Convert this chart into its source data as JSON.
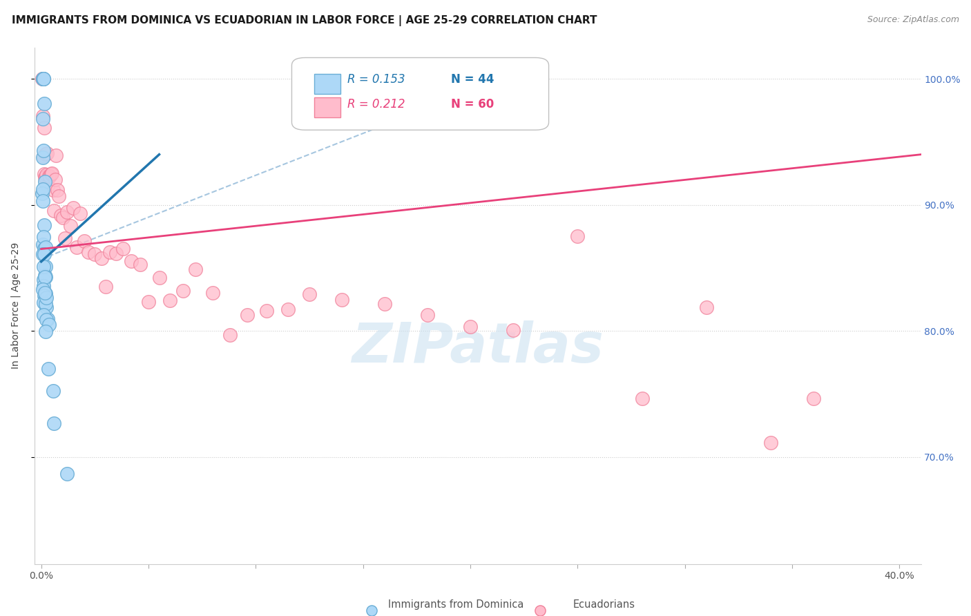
{
  "title": "IMMIGRANTS FROM DOMINICA VS ECUADORIAN IN LABOR FORCE | AGE 25-29 CORRELATION CHART",
  "source": "Source: ZipAtlas.com",
  "ylabel": "In Labor Force | Age 25-29",
  "xlim": [
    -0.003,
    0.41
  ],
  "ylim": [
    0.615,
    1.025
  ],
  "x_ticks": [
    0.0,
    0.05,
    0.1,
    0.15,
    0.2,
    0.25,
    0.3,
    0.35,
    0.4
  ],
  "x_tick_labels": [
    "0.0%",
    "",
    "",
    "",
    "",
    "",
    "",
    "",
    "40.0%"
  ],
  "y_ticks": [
    0.7,
    0.8,
    0.9,
    1.0
  ],
  "y_tick_labels_right": [
    "70.0%",
    "80.0%",
    "90.0%",
    "100.0%"
  ],
  "legend_r1": "R = 0.153",
  "legend_n1": "N = 44",
  "legend_r2": "R = 0.212",
  "legend_n2": "N = 60",
  "dominica_face": "#add8f7",
  "dominica_edge": "#6aaed6",
  "ecuadorian_face": "#ffbccc",
  "ecuadorian_edge": "#f08099",
  "line_dominica_color": "#2176ae",
  "line_ecuadorian_color": "#e8407a",
  "dashed_line_color": "#90b8d8",
  "grid_color": "#cccccc",
  "background_color": "#ffffff",
  "watermark": "ZIPatlas",
  "title_fontsize": 11,
  "axis_label_fontsize": 10,
  "tick_fontsize": 10,
  "legend_fontsize": 12
}
